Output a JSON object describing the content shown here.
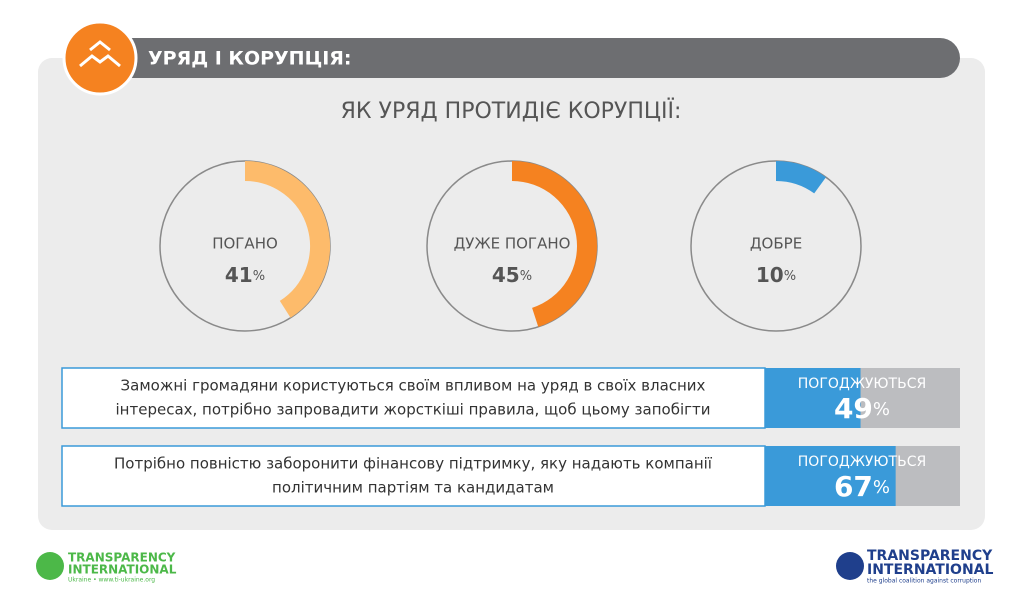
{
  "header": {
    "title": "УРЯД І КОРУПЦІЯ:"
  },
  "subtitle": "ЯК УРЯД ПРОТИДІЄ КОРУПЦІЇ:",
  "unit": "%",
  "gauges": [
    {
      "label": "ПОГАНО",
      "value": 41,
      "color": "#fdbb6b"
    },
    {
      "label": "ДУЖЕ ПОГАНО",
      "value": 45,
      "color": "#f58220"
    },
    {
      "label": "ДОБРЕ",
      "value": 10,
      "color": "#3a9ad9"
    }
  ],
  "statements": [
    {
      "lines": [
        "Заможні громадяни користуються своїм впливом на уряд в своїх власних",
        "інтересах, потрібно запровадити жорсткіші правила, щоб цьому запобігти"
      ],
      "agree_label": "ПОГОДЖУЮТЬСЯ",
      "value": 49
    },
    {
      "lines": [
        "Потрібно повністю заборонити фінансову підтримку, яку надають компанії",
        "політичним партіям та кандидатам"
      ],
      "agree_label": "ПОГОДЖУЮТЬСЯ",
      "value": 67
    }
  ],
  "logos": {
    "left": {
      "lines": [
        "TRANSPARENCY",
        "INTERNATIONAL"
      ],
      "sub": "Ukraine • www.ti-ukraine.org"
    },
    "right": {
      "lines": [
        "TRANSPARENCY",
        "INTERNATIONAL"
      ],
      "sub": "the global coalition against corruption"
    }
  }
}
